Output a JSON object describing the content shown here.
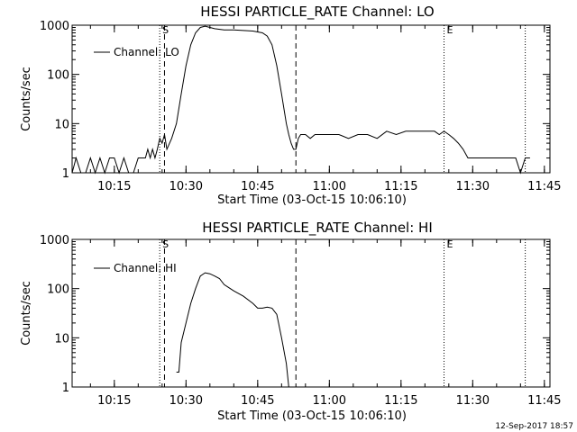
{
  "footer": {
    "timestamp": "12-Sep-2017 18:57"
  },
  "chart_data": [
    {
      "type": "line",
      "title": "HESSI PARTICLE_RATE Channel: LO",
      "xlabel": "Start Time (03-Oct-15 10:06:10)",
      "ylabel": "Counts/sec",
      "y_scale": "log",
      "ylim": [
        1,
        1000
      ],
      "xlim": [
        "10:06:10",
        "11:46:10"
      ],
      "x_ticks": [
        "10:15",
        "10:30",
        "10:45",
        "11:00",
        "11:15",
        "11:30",
        "11:45"
      ],
      "y_ticks": [
        "1",
        "10",
        "100",
        "1000"
      ],
      "grid": false,
      "legend": {
        "position": "top-left",
        "entries": [
          "Channel: LO"
        ]
      },
      "markers": [
        {
          "label": "S",
          "time": "10:24:30",
          "style": "dotted"
        },
        {
          "label": "",
          "time": "10:25:30",
          "style": "dashed"
        },
        {
          "label": "",
          "time": "10:53:00",
          "style": "dashed"
        },
        {
          "label": "E",
          "time": "11:24:00",
          "style": "dotted"
        },
        {
          "label": "",
          "time": "11:41:00",
          "style": "dotted"
        }
      ],
      "series": [
        {
          "name": "Channel: LO",
          "x": [
            "10:06:10",
            "10:07",
            "10:08",
            "10:09",
            "10:10",
            "10:11",
            "10:12",
            "10:13",
            "10:14",
            "10:15",
            "10:16",
            "10:17",
            "10:18",
            "10:19",
            "10:20",
            "10:20:30",
            "10:21",
            "10:21:30",
            "10:22",
            "10:22:30",
            "10:23",
            "10:23:30",
            "10:24",
            "10:24:30",
            "10:25",
            "10:25:30",
            "10:26",
            "10:27",
            "10:28",
            "10:29",
            "10:30",
            "10:31",
            "10:32",
            "10:33",
            "10:34",
            "10:35",
            "10:36",
            "10:38",
            "10:40",
            "10:42",
            "10:44",
            "10:46",
            "10:47",
            "10:48",
            "10:49",
            "10:50",
            "10:51",
            "10:51:30",
            "10:52",
            "10:52:30",
            "10:53",
            "10:53:30",
            "10:54",
            "10:55",
            "10:56",
            "10:57",
            "10:58",
            "11:00",
            "11:02",
            "11:04",
            "11:06",
            "11:08",
            "11:10",
            "11:12",
            "11:14",
            "11:16",
            "11:18",
            "11:20",
            "11:22",
            "11:23",
            "11:24",
            "11:25",
            "11:26",
            "11:27",
            "11:28",
            "11:29",
            "11:30",
            "11:32",
            "11:34",
            "11:36",
            "11:38",
            "11:39",
            "11:40",
            "11:41",
            "11:42"
          ],
          "y": [
            1,
            2,
            1,
            1,
            2,
            1,
            2,
            1,
            2,
            2,
            1,
            2,
            1,
            1,
            2,
            2,
            2,
            2,
            3,
            2,
            3,
            2,
            3,
            5,
            4,
            6,
            3,
            5,
            10,
            40,
            150,
            400,
            700,
            900,
            950,
            900,
            850,
            800,
            800,
            780,
            760,
            700,
            600,
            400,
            150,
            40,
            10,
            6,
            4,
            3,
            3,
            5,
            6,
            6,
            5,
            6,
            6,
            6,
            6,
            5,
            6,
            6,
            5,
            7,
            6,
            7,
            7,
            7,
            7,
            6,
            7,
            6,
            5,
            4,
            3,
            2,
            2,
            2,
            2,
            2,
            2,
            2,
            1,
            2,
            2
          ]
        }
      ]
    },
    {
      "type": "line",
      "title": "HESSI PARTICLE_RATE Channel: HI",
      "xlabel": "Start Time (03-Oct-15 10:06:10)",
      "ylabel": "Counts/sec",
      "y_scale": "log",
      "ylim": [
        1,
        1000
      ],
      "xlim": [
        "10:06:10",
        "11:46:10"
      ],
      "x_ticks": [
        "10:15",
        "10:30",
        "10:45",
        "11:00",
        "11:15",
        "11:30",
        "11:45"
      ],
      "y_ticks": [
        "1",
        "10",
        "100",
        "1000"
      ],
      "grid": false,
      "legend": {
        "position": "top-left",
        "entries": [
          "Channel: HI"
        ]
      },
      "markers": [
        {
          "label": "S",
          "time": "10:24:30",
          "style": "dotted"
        },
        {
          "label": "",
          "time": "10:25:30",
          "style": "dashed"
        },
        {
          "label": "",
          "time": "10:53:00",
          "style": "dashed"
        },
        {
          "label": "E",
          "time": "11:24:00",
          "style": "dotted"
        },
        {
          "label": "",
          "time": "11:41:00",
          "style": "dotted"
        }
      ],
      "series": [
        {
          "name": "Channel: HI",
          "x": [
            "10:28",
            "10:28:30",
            "10:29",
            "10:30",
            "10:31",
            "10:32",
            "10:33",
            "10:34",
            "10:35",
            "10:36",
            "10:37",
            "10:38",
            "10:40",
            "10:42",
            "10:44",
            "10:45",
            "10:46",
            "10:47",
            "10:48",
            "10:49",
            "10:50",
            "10:51",
            "10:51:30"
          ],
          "y": [
            2,
            2,
            8,
            20,
            50,
            100,
            180,
            210,
            200,
            180,
            160,
            120,
            90,
            70,
            50,
            40,
            40,
            42,
            40,
            30,
            10,
            3,
            1
          ]
        }
      ]
    }
  ]
}
